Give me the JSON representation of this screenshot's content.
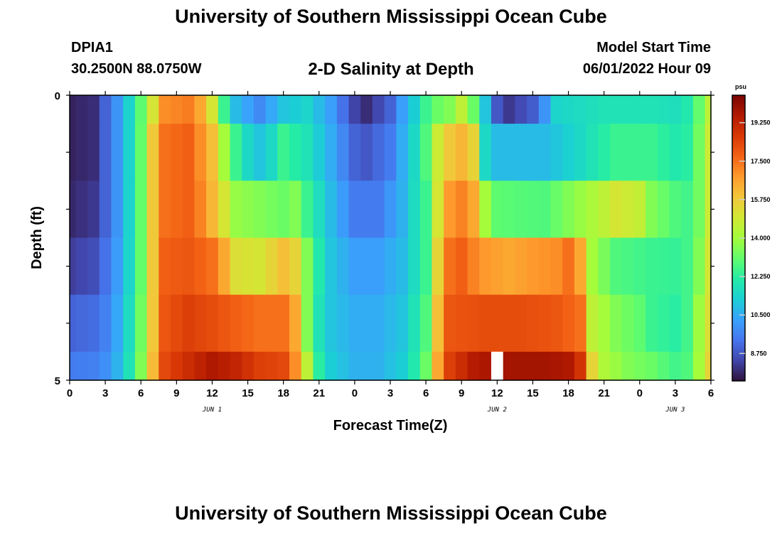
{
  "header": {
    "title": "University of Southern Mississippi Ocean Cube",
    "station_id": "DPIA1",
    "station_coords": "30.2500N  88.0750W",
    "chart_title": "2-D Salinity at Depth",
    "model_start_label": "Model Start Time",
    "model_start_value": "06/01/2022 Hour 09"
  },
  "footer": {
    "title": "University of Southern Mississippi Ocean Cube"
  },
  "chart_data": {
    "type": "heatmap",
    "title": "2-D Salinity at Depth",
    "xlabel": "Forecast Time(Z)",
    "ylabel": "Depth (ft)",
    "x_tick_labels": [
      "0",
      "3",
      "6",
      "9",
      "12",
      "15",
      "18",
      "21",
      "0",
      "3",
      "6",
      "9",
      "12",
      "15",
      "18",
      "21",
      "0",
      "3",
      "6"
    ],
    "date_labels": [
      {
        "text": "JUN 1",
        "at_hour": 12
      },
      {
        "text": "JUN 2",
        "at_hour": 36
      },
      {
        "text": "JUN 3",
        "at_hour": 51
      }
    ],
    "x_range_hours": [
      0,
      54
    ],
    "y_range": [
      0,
      5
    ],
    "y_tick_labels": [
      "0",
      "5"
    ],
    "y_reversed": true,
    "colorbar": {
      "unit": "psu",
      "range": [
        7.5,
        20.5
      ],
      "labels": [
        "19.250",
        "17.500",
        "15.750",
        "14.000",
        "12.250",
        "10.500",
        "8.750"
      ],
      "label_values": [
        19.25,
        17.5,
        15.75,
        14.0,
        12.25,
        10.5,
        8.75
      ],
      "stops": [
        "#30123b",
        "#4145ab",
        "#4675ed",
        "#39a2fc",
        "#1bcfd4",
        "#24eca6",
        "#61fc6c",
        "#a4fc3b",
        "#d1e834",
        "#f3c63a",
        "#fe9b2d",
        "#f36315",
        "#d93806",
        "#b11901",
        "#7a0403"
      ]
    },
    "missing_data": [
      {
        "hour": 36,
        "depth_row": 5
      }
    ],
    "rows": [
      {
        "depth_start": 0,
        "depth_end": 0.5,
        "keyframes": [
          [
            0,
            7.8
          ],
          [
            2,
            8.0
          ],
          [
            3,
            9.0
          ],
          [
            4.5,
            10.5
          ],
          [
            5.5,
            12.2
          ],
          [
            6.5,
            13.8
          ],
          [
            7.2,
            15.5
          ],
          [
            8,
            17.0
          ],
          [
            10,
            17.3
          ],
          [
            11,
            16.5
          ],
          [
            12,
            15.0
          ],
          [
            13,
            12.5
          ],
          [
            14,
            10.8
          ],
          [
            16,
            9.8
          ],
          [
            18,
            11.0
          ],
          [
            20,
            11.4
          ],
          [
            22,
            10.2
          ],
          [
            24,
            8.4
          ],
          [
            25,
            8.0
          ],
          [
            27,
            9.0
          ],
          [
            28,
            10.2
          ],
          [
            29,
            11.2
          ],
          [
            30,
            12.5
          ],
          [
            31,
            13.2
          ],
          [
            32,
            13.5
          ],
          [
            33,
            14.5
          ],
          [
            34,
            13.2
          ],
          [
            35,
            11.0
          ],
          [
            36,
            8.8
          ],
          [
            37,
            8.2
          ],
          [
            39,
            8.9
          ],
          [
            40,
            10.0
          ],
          [
            41,
            11.4
          ],
          [
            45,
            11.8
          ],
          [
            49,
            11.8
          ],
          [
            51,
            11.7
          ],
          [
            52,
            12.0
          ],
          [
            52.8,
            12.8
          ],
          [
            53.3,
            13.5
          ],
          [
            54,
            14.5
          ]
        ]
      },
      {
        "depth_start": 0.5,
        "depth_end": 1.5,
        "keyframes": [
          [
            0,
            7.8
          ],
          [
            2,
            8.0
          ],
          [
            3,
            9.0
          ],
          [
            4.5,
            10.5
          ],
          [
            5.5,
            12.2
          ],
          [
            6.5,
            14.0
          ],
          [
            7.2,
            16.5
          ],
          [
            8,
            17.5
          ],
          [
            10,
            17.8
          ],
          [
            11,
            17.0
          ],
          [
            12,
            16.0
          ],
          [
            13,
            14.0
          ],
          [
            14,
            12.5
          ],
          [
            15,
            11.5
          ],
          [
            16,
            11.0
          ],
          [
            17,
            11.5
          ],
          [
            18,
            12.5
          ],
          [
            20,
            11.8
          ],
          [
            22,
            10.5
          ],
          [
            24,
            9.0
          ],
          [
            25,
            8.8
          ],
          [
            27,
            9.5
          ],
          [
            28,
            10.5
          ],
          [
            29,
            11.5
          ],
          [
            30,
            12.8
          ],
          [
            31,
            14.8
          ],
          [
            32,
            15.8
          ],
          [
            33,
            16.2
          ],
          [
            34,
            15.5
          ],
          [
            35,
            11.5
          ],
          [
            36,
            10.8
          ],
          [
            40,
            10.8
          ],
          [
            43,
            11.5
          ],
          [
            46,
            12.5
          ],
          [
            49,
            12.5
          ],
          [
            51,
            12.0
          ],
          [
            52,
            12.2
          ],
          [
            52.8,
            13.0
          ],
          [
            53.3,
            13.8
          ],
          [
            54,
            14.8
          ]
        ]
      },
      {
        "depth_start": 1.5,
        "depth_end": 2.5,
        "keyframes": [
          [
            0,
            7.9
          ],
          [
            2,
            8.2
          ],
          [
            3,
            9.0
          ],
          [
            4.5,
            10.5
          ],
          [
            5.5,
            12.2
          ],
          [
            6.5,
            14.0
          ],
          [
            7.2,
            16.5
          ],
          [
            8,
            17.5
          ],
          [
            10,
            17.8
          ],
          [
            11,
            17.2
          ],
          [
            12,
            16.2
          ],
          [
            13,
            15.0
          ],
          [
            14,
            13.8
          ],
          [
            16,
            13.5
          ],
          [
            18,
            13.2
          ],
          [
            19,
            13.5
          ],
          [
            20,
            12.5
          ],
          [
            22,
            10.8
          ],
          [
            24,
            9.5
          ],
          [
            26,
            9.5
          ],
          [
            28,
            10.6
          ],
          [
            29,
            11.6
          ],
          [
            30,
            12.5
          ],
          [
            31,
            15.0
          ],
          [
            32,
            16.8
          ],
          [
            33,
            17.2
          ],
          [
            34,
            16.5
          ],
          [
            35,
            14.0
          ],
          [
            36,
            13.0
          ],
          [
            40,
            12.8
          ],
          [
            42,
            13.5
          ],
          [
            45,
            14.5
          ],
          [
            46,
            15.0
          ],
          [
            48,
            14.6
          ],
          [
            49,
            13.5
          ],
          [
            51,
            12.8
          ],
          [
            52,
            12.6
          ],
          [
            52.8,
            13.0
          ],
          [
            53.3,
            13.8
          ],
          [
            54,
            14.8
          ]
        ]
      },
      {
        "depth_start": 2.5,
        "depth_end": 3.5,
        "keyframes": [
          [
            0,
            8.3
          ],
          [
            2,
            8.6
          ],
          [
            3,
            9.3
          ],
          [
            4.5,
            10.6
          ],
          [
            5.5,
            12.2
          ],
          [
            6.5,
            14.0
          ],
          [
            7.2,
            16.5
          ],
          [
            8,
            17.8
          ],
          [
            10,
            18.0
          ],
          [
            12,
            17.5
          ],
          [
            13,
            16.5
          ],
          [
            14,
            15.2
          ],
          [
            16,
            15.0
          ],
          [
            18,
            16.0
          ],
          [
            18.5,
            16.3
          ],
          [
            19,
            15.5
          ],
          [
            20,
            13.5
          ],
          [
            21,
            12.0
          ],
          [
            22,
            11.0
          ],
          [
            24,
            10.2
          ],
          [
            26,
            10.2
          ],
          [
            28,
            10.8
          ],
          [
            29,
            11.6
          ],
          [
            30,
            12.5
          ],
          [
            31,
            15.5
          ],
          [
            32,
            17.5
          ],
          [
            33,
            17.8
          ],
          [
            34,
            17.2
          ],
          [
            35,
            16.8
          ],
          [
            37,
            16.5
          ],
          [
            39,
            16.8
          ],
          [
            41,
            17.0
          ],
          [
            42,
            17.5
          ],
          [
            43,
            16.5
          ],
          [
            44,
            14.0
          ],
          [
            46,
            12.8
          ],
          [
            49,
            12.5
          ],
          [
            51,
            12.4
          ],
          [
            52,
            12.6
          ],
          [
            52.8,
            13.2
          ],
          [
            53.3,
            14.0
          ],
          [
            54,
            15.0
          ]
        ]
      },
      {
        "depth_start": 3.5,
        "depth_end": 4.5,
        "keyframes": [
          [
            0,
            9.0
          ],
          [
            2,
            9.2
          ],
          [
            3,
            9.6
          ],
          [
            4.5,
            10.8
          ],
          [
            5.5,
            12.4
          ],
          [
            6.5,
            14.2
          ],
          [
            7.2,
            16.5
          ],
          [
            8,
            18.0
          ],
          [
            10,
            18.5
          ],
          [
            12,
            18.2
          ],
          [
            14,
            17.8
          ],
          [
            16,
            17.5
          ],
          [
            18,
            17.5
          ],
          [
            18.5,
            17.2
          ],
          [
            19,
            16.5
          ],
          [
            20,
            13.5
          ],
          [
            21,
            11.8
          ],
          [
            22,
            11.0
          ],
          [
            24,
            10.5
          ],
          [
            26,
            10.5
          ],
          [
            28,
            11.0
          ],
          [
            29,
            11.8
          ],
          [
            30,
            12.8
          ],
          [
            31,
            16.0
          ],
          [
            32,
            18.0
          ],
          [
            35,
            18.2
          ],
          [
            38,
            18.2
          ],
          [
            41,
            18.0
          ],
          [
            43,
            17.5
          ],
          [
            44,
            14.5
          ],
          [
            46,
            13.5
          ],
          [
            48,
            13.0
          ],
          [
            49,
            12.5
          ],
          [
            51,
            12.2
          ],
          [
            52,
            12.6
          ],
          [
            52.8,
            13.5
          ],
          [
            53.3,
            14.5
          ],
          [
            54,
            15.2
          ]
        ]
      },
      {
        "depth_start": 4.5,
        "depth_end": 5,
        "keyframes": [
          [
            0,
            9.5
          ],
          [
            2,
            9.6
          ],
          [
            3,
            9.9
          ],
          [
            4.5,
            11.0
          ],
          [
            5.5,
            12.6
          ],
          [
            6.5,
            14.4
          ],
          [
            7.2,
            16.8
          ],
          [
            8,
            18.3
          ],
          [
            10,
            19.0
          ],
          [
            12,
            19.6
          ],
          [
            14,
            19.2
          ],
          [
            16,
            18.5
          ],
          [
            18,
            18.3
          ],
          [
            19,
            17.0
          ],
          [
            20,
            14.5
          ],
          [
            21,
            12.2
          ],
          [
            22,
            11.2
          ],
          [
            24,
            10.6
          ],
          [
            26,
            10.6
          ],
          [
            28,
            11.2
          ],
          [
            29,
            12.0
          ],
          [
            30,
            13.2
          ],
          [
            31,
            16.5
          ],
          [
            32,
            18.5
          ],
          [
            34,
            19.5
          ],
          [
            36,
            19.8
          ],
          [
            38,
            19.8
          ],
          [
            40,
            19.8
          ],
          [
            42,
            19.6
          ],
          [
            43,
            18.8
          ],
          [
            44,
            15.5
          ],
          [
            45,
            14.2
          ],
          [
            47,
            13.5
          ],
          [
            49,
            13.2
          ],
          [
            51,
            12.6
          ],
          [
            52,
            12.8
          ],
          [
            52.8,
            13.6
          ],
          [
            53.3,
            14.6
          ],
          [
            54,
            15.5
          ]
        ]
      }
    ]
  }
}
